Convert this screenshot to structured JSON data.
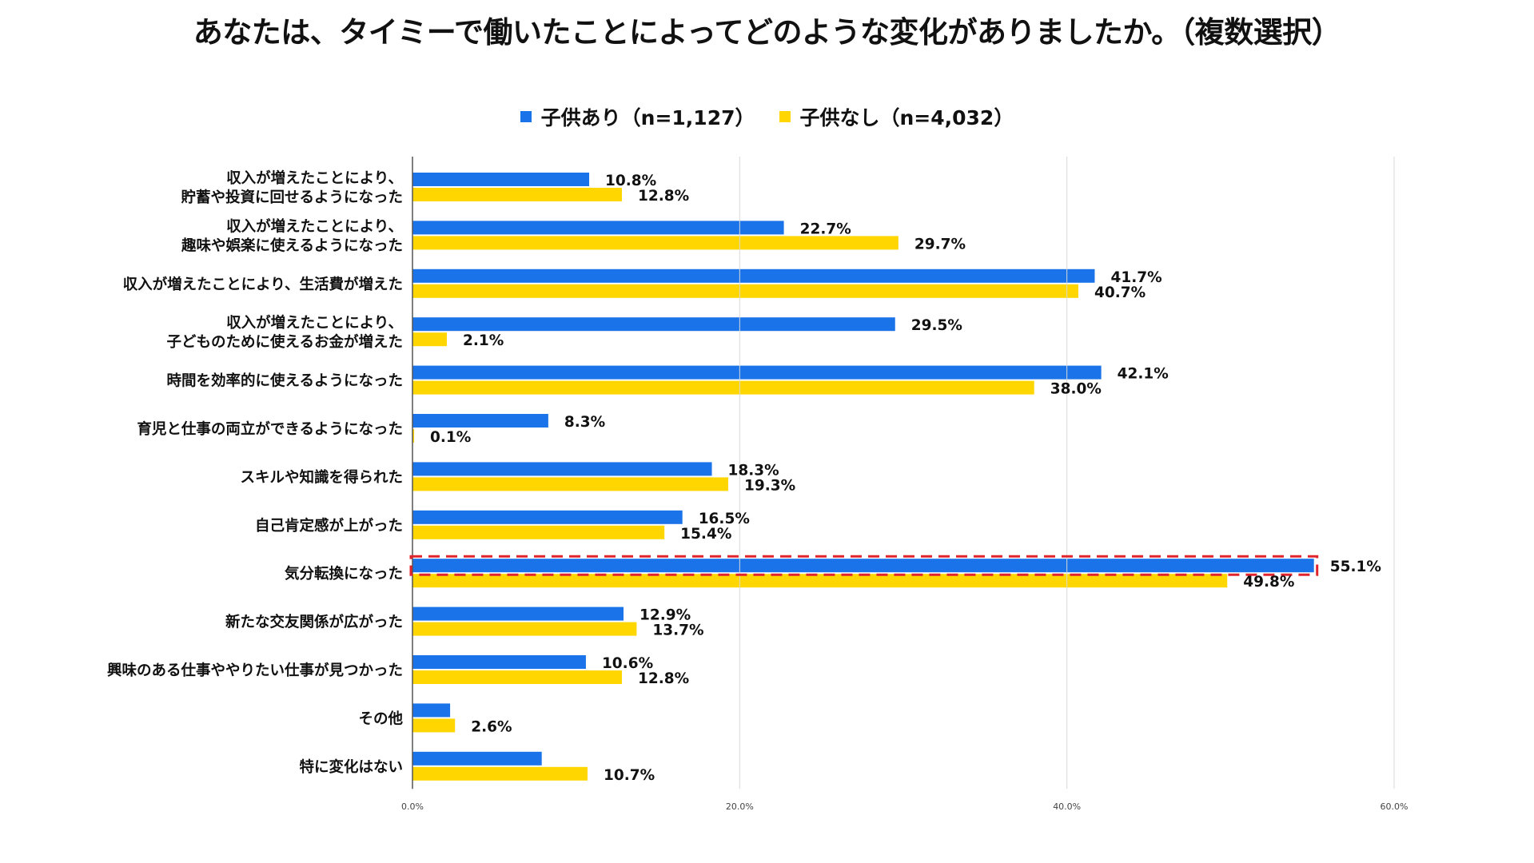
{
  "chart_data": {
    "type": "bar",
    "orientation": "horizontal",
    "title": "あなたは、タイミーで働いたことによってどのような変化がありましたか。（複数選択）",
    "xlabel": "",
    "ylabel": "",
    "xlim": [
      0,
      60
    ],
    "grid": true,
    "legend_position": "top-center",
    "ticks": [
      "0.0%",
      "20.0%",
      "40.0%",
      "60.0%"
    ],
    "tick_values": [
      0,
      20,
      40,
      60
    ],
    "highlight_index": 8,
    "highlight_color": "#e0242e",
    "categories": [
      [
        "収入が増えたことにより、",
        "貯蓄や投資に回せるようになった"
      ],
      [
        "収入が増えたことにより、",
        "趣味や娯楽に使えるようになった"
      ],
      [
        "収入が増えたことにより、生活費が増えた"
      ],
      [
        "収入が増えたことにより、",
        "子どものために使えるお金が増えた"
      ],
      [
        "時間を効率的に使えるようになった"
      ],
      [
        "育児と仕事の両立ができるようになった"
      ],
      [
        "スキルや知識を得られた"
      ],
      [
        "自己肯定感が上がった"
      ],
      [
        "気分転換になった"
      ],
      [
        "新たな交友関係が広がった"
      ],
      [
        "興味のある仕事ややりたい仕事が見つかった"
      ],
      [
        "その他"
      ],
      [
        "特に変化はない"
      ]
    ],
    "series": [
      {
        "name": "子供あり（n=1,127）",
        "color": "#1a73e8",
        "values": [
          10.8,
          22.7,
          41.7,
          29.5,
          42.1,
          8.3,
          18.3,
          16.5,
          55.1,
          12.9,
          10.6,
          2.3,
          7.9
        ],
        "labels": [
          "10.8%",
          "22.7%",
          "41.7%",
          "29.5%",
          "42.1%",
          "8.3%",
          "18.3%",
          "16.5%",
          "55.1%",
          "12.9%",
          "10.6%",
          null,
          null
        ]
      },
      {
        "name": "子供なし（n=4,032）",
        "color": "#ffd600",
        "values": [
          12.8,
          29.7,
          40.7,
          2.1,
          38.0,
          0.1,
          19.3,
          15.4,
          49.8,
          13.7,
          12.8,
          2.6,
          10.7
        ],
        "labels": [
          "12.8%",
          "29.7%",
          "40.7%",
          "2.1%",
          "38.0%",
          "0.1%",
          "19.3%",
          "15.4%",
          "49.8%",
          "13.7%",
          "12.8%",
          "2.6%",
          "10.7%"
        ]
      }
    ]
  }
}
